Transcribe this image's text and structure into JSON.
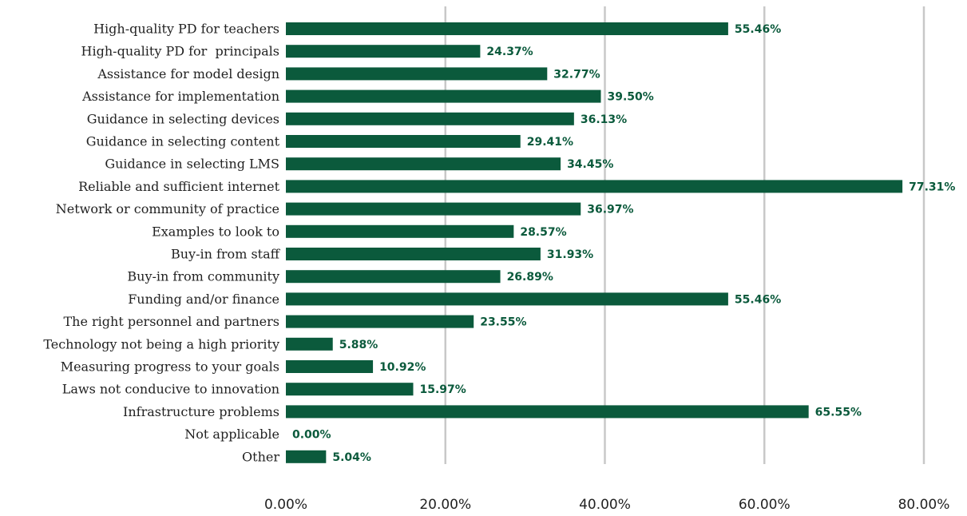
{
  "chart_data": {
    "type": "bar",
    "orientation": "horizontal",
    "categories": [
      "High-quality PD for teachers",
      "High-quality PD for  principals",
      "Assistance for model design",
      "Assistance for implementation",
      "Guidance in selecting devices",
      "Guidance in selecting content",
      "Guidance in selecting LMS",
      "Reliable and sufficient internet",
      "Network or community of practice",
      "Examples to look to",
      "Buy-in from staff",
      "Buy-in from community",
      "Funding and/or finance",
      "The right personnel and partners",
      "Technology not being a high priority",
      "Measuring progress to your goals",
      "Laws not conducive to innovation",
      "Infrastructure problems",
      "Not applicable",
      "Other"
    ],
    "values": [
      55.46,
      24.37,
      32.77,
      39.5,
      36.13,
      29.41,
      34.45,
      77.31,
      36.97,
      28.57,
      31.93,
      26.89,
      55.46,
      23.55,
      5.88,
      10.92,
      15.97,
      65.55,
      0.0,
      5.04
    ],
    "value_labels": [
      "55.46%",
      "24.37%",
      "32.77%",
      "39.50%",
      "36.13%",
      "29.41%",
      "34.45%",
      "77.31%",
      "36.97%",
      "28.57%",
      "31.93%",
      "26.89%",
      "55.46%",
      "23.55%",
      "5.88%",
      "10.92%",
      "15.97%",
      "65.55%",
      "0.00%",
      "5.04%"
    ],
    "xlim": [
      0,
      80
    ],
    "xticks": [
      0,
      20,
      40,
      60,
      80
    ],
    "xtick_labels": [
      "0.00%",
      "20.00%",
      "40.00%",
      "60.00%",
      "80.00%"
    ],
    "title": "",
    "xlabel": "",
    "ylabel": "",
    "grid": "vertical",
    "legend": "none",
    "colors": {
      "bar": "#0b5a3c",
      "value_label": "#0b5a3c",
      "grid": "#c8c8c8",
      "text": "#222222"
    }
  }
}
